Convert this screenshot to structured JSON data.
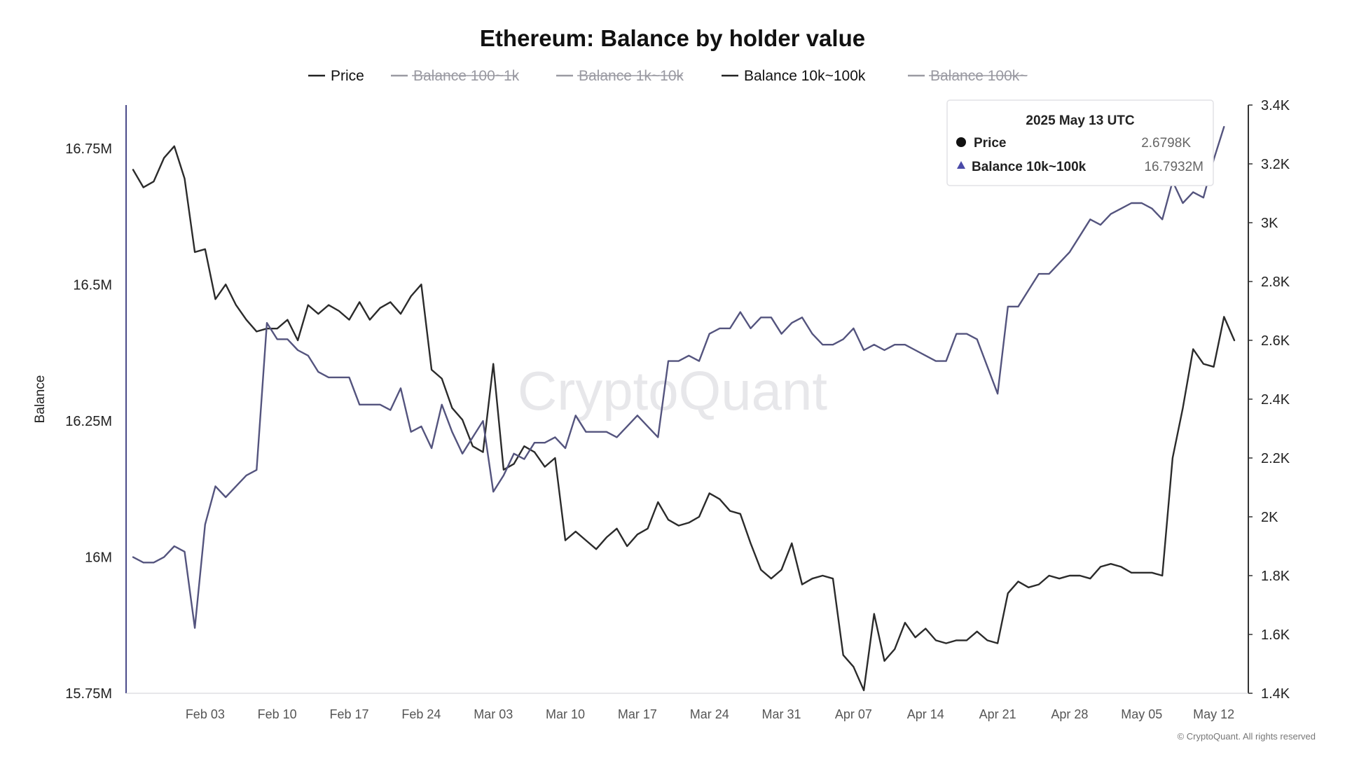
{
  "chart_data": {
    "type": "line",
    "title": "Ethereum: Balance by holder value",
    "ylabel": "Balance",
    "watermark": "CryptoQuant",
    "copyright": "© CryptoQuant. All rights reserved",
    "legend_placement": "top-center",
    "legend": [
      {
        "name": "Price",
        "color": "#222222",
        "active": true
      },
      {
        "name": "Balance 100~1k",
        "color": "#9a9aa2",
        "active": false
      },
      {
        "name": "Balance 1k~10k",
        "color": "#9a9aa2",
        "active": false
      },
      {
        "name": "Balance 10k~100k",
        "color": "#222222",
        "active": true
      },
      {
        "name": "Balance 100k~",
        "color": "#9a9aa2",
        "active": false
      }
    ],
    "x_ticks": [
      "Feb 03",
      "Feb 10",
      "Feb 17",
      "Feb 24",
      "Mar 03",
      "Mar 10",
      "Mar 17",
      "Mar 24",
      "Mar 31",
      "Apr 07",
      "Apr 14",
      "Apr 21",
      "Apr 28",
      "May 05",
      "May 12"
    ],
    "x_range": [
      "2025-01-27",
      "2025-05-14"
    ],
    "y_left": {
      "ticks": [
        "16.75M",
        "16.5M",
        "16.25M",
        "16M",
        "15.75M"
      ],
      "tick_values": [
        16.75,
        16.5,
        16.25,
        16.0,
        15.75
      ],
      "range": [
        15.75,
        16.83
      ]
    },
    "y_right": {
      "ticks": [
        "3.4K",
        "3.2K",
        "3K",
        "2.8K",
        "2.6K",
        "2.4K",
        "2.2K",
        "2K",
        "1.8K",
        "1.6K",
        "1.4K"
      ],
      "tick_values": [
        3.4,
        3.2,
        3.0,
        2.8,
        2.6,
        2.4,
        2.2,
        2.0,
        1.8,
        1.6,
        1.4
      ],
      "range": [
        1.4,
        3.4
      ]
    },
    "series": [
      {
        "name": "Price",
        "axis": "right",
        "color": "#2b2b2b",
        "points": [
          [
            "2025-01-27",
            3.18
          ],
          [
            "2025-01-28",
            3.12
          ],
          [
            "2025-01-29",
            3.14
          ],
          [
            "2025-01-30",
            3.22
          ],
          [
            "2025-01-31",
            3.26
          ],
          [
            "2025-02-01",
            3.15
          ],
          [
            "2025-02-02",
            2.9
          ],
          [
            "2025-02-03",
            2.91
          ],
          [
            "2025-02-04",
            2.74
          ],
          [
            "2025-02-05",
            2.79
          ],
          [
            "2025-02-06",
            2.72
          ],
          [
            "2025-02-07",
            2.67
          ],
          [
            "2025-02-08",
            2.63
          ],
          [
            "2025-02-09",
            2.64
          ],
          [
            "2025-02-10",
            2.64
          ],
          [
            "2025-02-11",
            2.67
          ],
          [
            "2025-02-12",
            2.6
          ],
          [
            "2025-02-13",
            2.72
          ],
          [
            "2025-02-14",
            2.69
          ],
          [
            "2025-02-15",
            2.72
          ],
          [
            "2025-02-16",
            2.7
          ],
          [
            "2025-02-17",
            2.67
          ],
          [
            "2025-02-18",
            2.73
          ],
          [
            "2025-02-19",
            2.67
          ],
          [
            "2025-02-20",
            2.71
          ],
          [
            "2025-02-21",
            2.73
          ],
          [
            "2025-02-22",
            2.69
          ],
          [
            "2025-02-23",
            2.75
          ],
          [
            "2025-02-24",
            2.79
          ],
          [
            "2025-02-25",
            2.5
          ],
          [
            "2025-02-26",
            2.47
          ],
          [
            "2025-02-27",
            2.37
          ],
          [
            "2025-02-28",
            2.33
          ],
          [
            "2025-03-01",
            2.24
          ],
          [
            "2025-03-02",
            2.22
          ],
          [
            "2025-03-03",
            2.52
          ],
          [
            "2025-03-04",
            2.16
          ],
          [
            "2025-03-05",
            2.18
          ],
          [
            "2025-03-06",
            2.24
          ],
          [
            "2025-03-07",
            2.22
          ],
          [
            "2025-03-08",
            2.17
          ],
          [
            "2025-03-09",
            2.2
          ],
          [
            "2025-03-10",
            1.92
          ],
          [
            "2025-03-11",
            1.95
          ],
          [
            "2025-03-12",
            1.92
          ],
          [
            "2025-03-13",
            1.89
          ],
          [
            "2025-03-14",
            1.93
          ],
          [
            "2025-03-15",
            1.96
          ],
          [
            "2025-03-16",
            1.9
          ],
          [
            "2025-03-17",
            1.94
          ],
          [
            "2025-03-18",
            1.96
          ],
          [
            "2025-03-19",
            2.05
          ],
          [
            "2025-03-20",
            1.99
          ],
          [
            "2025-03-21",
            1.97
          ],
          [
            "2025-03-22",
            1.98
          ],
          [
            "2025-03-23",
            2.0
          ],
          [
            "2025-03-24",
            2.08
          ],
          [
            "2025-03-25",
            2.06
          ],
          [
            "2025-03-26",
            2.02
          ],
          [
            "2025-03-27",
            2.01
          ],
          [
            "2025-03-28",
            1.91
          ],
          [
            "2025-03-29",
            1.82
          ],
          [
            "2025-03-30",
            1.79
          ],
          [
            "2025-03-31",
            1.82
          ],
          [
            "2025-04-01",
            1.91
          ],
          [
            "2025-04-02",
            1.77
          ],
          [
            "2025-04-03",
            1.79
          ],
          [
            "2025-04-04",
            1.8
          ],
          [
            "2025-04-05",
            1.79
          ],
          [
            "2025-04-06",
            1.53
          ],
          [
            "2025-04-07",
            1.49
          ],
          [
            "2025-04-08",
            1.41
          ],
          [
            "2025-04-09",
            1.67
          ],
          [
            "2025-04-10",
            1.51
          ],
          [
            "2025-04-11",
            1.55
          ],
          [
            "2025-04-12",
            1.64
          ],
          [
            "2025-04-13",
            1.59
          ],
          [
            "2025-04-14",
            1.62
          ],
          [
            "2025-04-15",
            1.58
          ],
          [
            "2025-04-16",
            1.57
          ],
          [
            "2025-04-17",
            1.58
          ],
          [
            "2025-04-18",
            1.58
          ],
          [
            "2025-04-19",
            1.61
          ],
          [
            "2025-04-20",
            1.58
          ],
          [
            "2025-04-21",
            1.57
          ],
          [
            "2025-04-22",
            1.74
          ],
          [
            "2025-04-23",
            1.78
          ],
          [
            "2025-04-24",
            1.76
          ],
          [
            "2025-04-25",
            1.77
          ],
          [
            "2025-04-26",
            1.8
          ],
          [
            "2025-04-27",
            1.79
          ],
          [
            "2025-04-28",
            1.8
          ],
          [
            "2025-04-29",
            1.8
          ],
          [
            "2025-04-30",
            1.79
          ],
          [
            "2025-05-01",
            1.83
          ],
          [
            "2025-05-02",
            1.84
          ],
          [
            "2025-05-03",
            1.83
          ],
          [
            "2025-05-04",
            1.81
          ],
          [
            "2025-05-05",
            1.81
          ],
          [
            "2025-05-06",
            1.81
          ],
          [
            "2025-05-07",
            1.8
          ],
          [
            "2025-05-08",
            2.2
          ],
          [
            "2025-05-09",
            2.37
          ],
          [
            "2025-05-10",
            2.57
          ],
          [
            "2025-05-11",
            2.52
          ],
          [
            "2025-05-12",
            2.51
          ],
          [
            "2025-05-13",
            2.68
          ],
          [
            "2025-05-14",
            2.6
          ]
        ]
      },
      {
        "name": "Balance 10k~100k",
        "axis": "left",
        "color": "#54547e",
        "points": [
          [
            "2025-01-27",
            16.0
          ],
          [
            "2025-01-28",
            15.99
          ],
          [
            "2025-01-29",
            15.99
          ],
          [
            "2025-01-30",
            16.0
          ],
          [
            "2025-01-31",
            16.02
          ],
          [
            "2025-02-01",
            16.01
          ],
          [
            "2025-02-02",
            15.87
          ],
          [
            "2025-02-03",
            16.06
          ],
          [
            "2025-02-04",
            16.13
          ],
          [
            "2025-02-05",
            16.11
          ],
          [
            "2025-02-06",
            16.13
          ],
          [
            "2025-02-07",
            16.15
          ],
          [
            "2025-02-08",
            16.16
          ],
          [
            "2025-02-09",
            16.43
          ],
          [
            "2025-02-10",
            16.4
          ],
          [
            "2025-02-11",
            16.4
          ],
          [
            "2025-02-12",
            16.38
          ],
          [
            "2025-02-13",
            16.37
          ],
          [
            "2025-02-14",
            16.34
          ],
          [
            "2025-02-15",
            16.33
          ],
          [
            "2025-02-16",
            16.33
          ],
          [
            "2025-02-17",
            16.33
          ],
          [
            "2025-02-18",
            16.28
          ],
          [
            "2025-02-19",
            16.28
          ],
          [
            "2025-02-20",
            16.28
          ],
          [
            "2025-02-21",
            16.27
          ],
          [
            "2025-02-22",
            16.31
          ],
          [
            "2025-02-23",
            16.23
          ],
          [
            "2025-02-24",
            16.24
          ],
          [
            "2025-02-25",
            16.2
          ],
          [
            "2025-02-26",
            16.28
          ],
          [
            "2025-02-27",
            16.23
          ],
          [
            "2025-02-28",
            16.19
          ],
          [
            "2025-03-01",
            16.22
          ],
          [
            "2025-03-02",
            16.25
          ],
          [
            "2025-03-03",
            16.12
          ],
          [
            "2025-03-04",
            16.15
          ],
          [
            "2025-03-05",
            16.19
          ],
          [
            "2025-03-06",
            16.18
          ],
          [
            "2025-03-07",
            16.21
          ],
          [
            "2025-03-08",
            16.21
          ],
          [
            "2025-03-09",
            16.22
          ],
          [
            "2025-03-10",
            16.2
          ],
          [
            "2025-03-11",
            16.26
          ],
          [
            "2025-03-12",
            16.23
          ],
          [
            "2025-03-13",
            16.23
          ],
          [
            "2025-03-14",
            16.23
          ],
          [
            "2025-03-15",
            16.22
          ],
          [
            "2025-03-16",
            16.24
          ],
          [
            "2025-03-17",
            16.26
          ],
          [
            "2025-03-18",
            16.24
          ],
          [
            "2025-03-19",
            16.22
          ],
          [
            "2025-03-20",
            16.36
          ],
          [
            "2025-03-21",
            16.36
          ],
          [
            "2025-03-22",
            16.37
          ],
          [
            "2025-03-23",
            16.36
          ],
          [
            "2025-03-24",
            16.41
          ],
          [
            "2025-03-25",
            16.42
          ],
          [
            "2025-03-26",
            16.42
          ],
          [
            "2025-03-27",
            16.45
          ],
          [
            "2025-03-28",
            16.42
          ],
          [
            "2025-03-29",
            16.44
          ],
          [
            "2025-03-30",
            16.44
          ],
          [
            "2025-03-31",
            16.41
          ],
          [
            "2025-04-01",
            16.43
          ],
          [
            "2025-04-02",
            16.44
          ],
          [
            "2025-04-03",
            16.41
          ],
          [
            "2025-04-04",
            16.39
          ],
          [
            "2025-04-05",
            16.39
          ],
          [
            "2025-04-06",
            16.4
          ],
          [
            "2025-04-07",
            16.42
          ],
          [
            "2025-04-08",
            16.38
          ],
          [
            "2025-04-09",
            16.39
          ],
          [
            "2025-04-10",
            16.38
          ],
          [
            "2025-04-11",
            16.39
          ],
          [
            "2025-04-12",
            16.39
          ],
          [
            "2025-04-13",
            16.38
          ],
          [
            "2025-04-14",
            16.37
          ],
          [
            "2025-04-15",
            16.36
          ],
          [
            "2025-04-16",
            16.36
          ],
          [
            "2025-04-17",
            16.41
          ],
          [
            "2025-04-18",
            16.41
          ],
          [
            "2025-04-19",
            16.4
          ],
          [
            "2025-04-20",
            16.35
          ],
          [
            "2025-04-21",
            16.3
          ],
          [
            "2025-04-22",
            16.46
          ],
          [
            "2025-04-23",
            16.46
          ],
          [
            "2025-04-24",
            16.49
          ],
          [
            "2025-04-25",
            16.52
          ],
          [
            "2025-04-26",
            16.52
          ],
          [
            "2025-04-27",
            16.54
          ],
          [
            "2025-04-28",
            16.56
          ],
          [
            "2025-04-29",
            16.59
          ],
          [
            "2025-04-30",
            16.62
          ],
          [
            "2025-05-01",
            16.61
          ],
          [
            "2025-05-02",
            16.63
          ],
          [
            "2025-05-03",
            16.64
          ],
          [
            "2025-05-04",
            16.65
          ],
          [
            "2025-05-05",
            16.65
          ],
          [
            "2025-05-06",
            16.64
          ],
          [
            "2025-05-07",
            16.62
          ],
          [
            "2025-05-08",
            16.69
          ],
          [
            "2025-05-09",
            16.65
          ],
          [
            "2025-05-10",
            16.67
          ],
          [
            "2025-05-11",
            16.66
          ],
          [
            "2025-05-12",
            16.73
          ],
          [
            "2025-05-13",
            16.79
          ]
        ]
      }
    ]
  },
  "tooltip": {
    "date": "2025 May 13 UTC",
    "rows": [
      {
        "marker": "circle",
        "label": "Price",
        "value": "2.6798K",
        "color": "#111111"
      },
      {
        "marker": "triangle",
        "label": "Balance 10k~100k",
        "value": "16.7932M",
        "color": "#4a4aa8"
      }
    ]
  }
}
